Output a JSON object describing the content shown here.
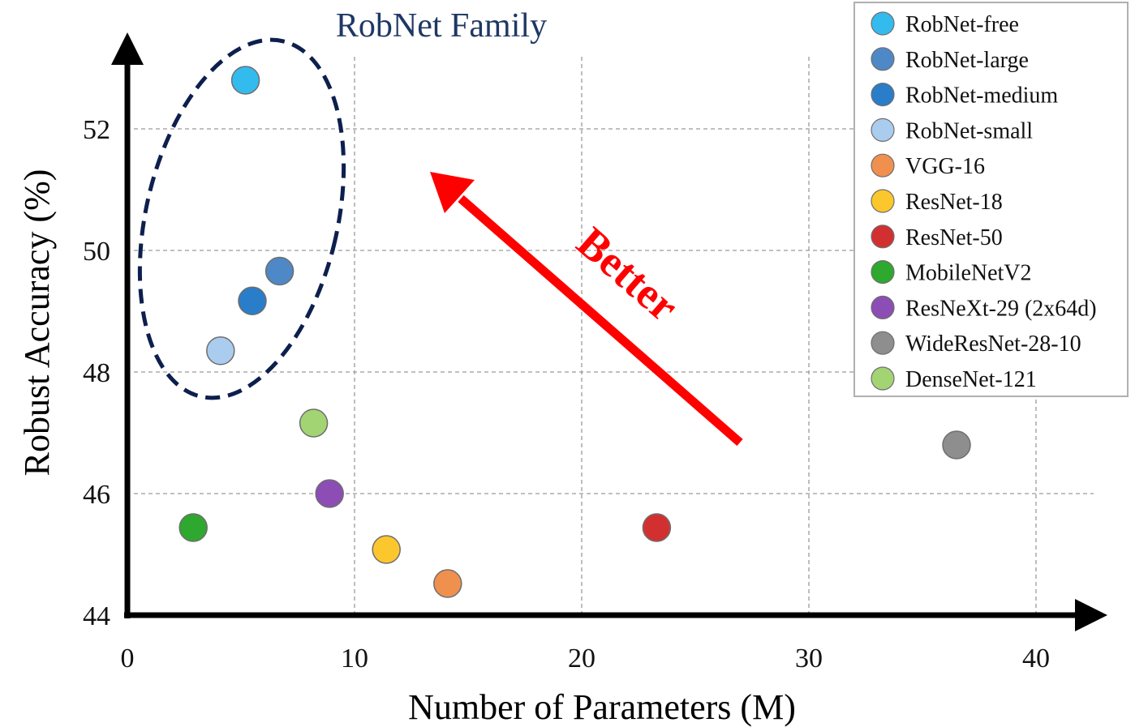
{
  "chart_data": {
    "type": "scatter",
    "title": "",
    "xlabel": "Number of Parameters (M)",
    "ylabel": "Robust Accuracy (%)",
    "xlim": [
      0,
      43
    ],
    "ylim": [
      44,
      53.5
    ],
    "xticks": [
      0,
      10,
      20,
      30,
      40
    ],
    "yticks": [
      44,
      46,
      48,
      50,
      52
    ],
    "grid": true,
    "legend_position": "top-right",
    "series": [
      {
        "name": "RobNet-free",
        "x": 5.2,
        "y": 52.8,
        "color": "#33bbee"
      },
      {
        "name": "RobNet-large",
        "x": 6.7,
        "y": 49.66,
        "color": "#4f88c6"
      },
      {
        "name": "RobNet-medium",
        "x": 5.5,
        "y": 49.17,
        "color": "#2a7dc8"
      },
      {
        "name": "RobNet-small",
        "x": 4.1,
        "y": 48.35,
        "color": "#aaccee"
      },
      {
        "name": "VGG-16",
        "x": 14.1,
        "y": 44.52,
        "color": "#f0904f"
      },
      {
        "name": "ResNet-18",
        "x": 11.4,
        "y": 45.08,
        "color": "#fcc72c"
      },
      {
        "name": "ResNet-50",
        "x": 23.3,
        "y": 45.44,
        "color": "#d23030"
      },
      {
        "name": "MobileNetV2",
        "x": 2.9,
        "y": 45.44,
        "color": "#2ea82e"
      },
      {
        "name": "ResNeXt-29 (2x64d)",
        "x": 8.9,
        "y": 46.0,
        "color": "#8c4db5"
      },
      {
        "name": "WideResNet-28-10",
        "x": 36.5,
        "y": 46.8,
        "color": "#8e8e8e"
      },
      {
        "name": "DenseNet-121",
        "x": 8.2,
        "y": 47.16,
        "color": "#a2d474"
      }
    ],
    "annotations": {
      "family_label": "RobNet Family",
      "family_color": "#1f3864",
      "better_label": "Better",
      "better_color": "#ff0000"
    }
  }
}
